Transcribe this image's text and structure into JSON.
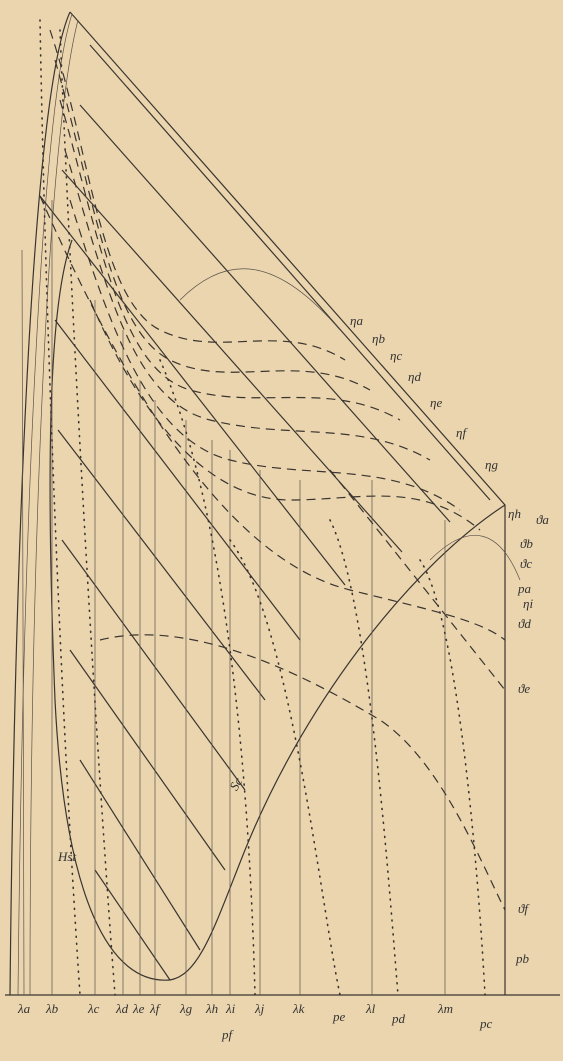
{
  "right_labels": [
    "ηa",
    "ηb",
    "ηc",
    "ηd",
    "ηe",
    "ηf",
    "ηg",
    "ηh",
    "ϑa",
    "ϑb",
    "ϑc",
    "pa",
    "ηi",
    "ϑd",
    "ϑe",
    "ϑf",
    "pb"
  ],
  "bottom_labels": [
    "λa",
    "λb",
    "λc",
    "λd",
    "λe",
    "λf",
    "λg",
    "λh",
    "λi",
    "λj",
    "λk",
    "pe",
    "λl",
    "pd",
    "λm",
    "pc",
    "pf"
  ],
  "curve_labels": [
    "Hst",
    "Sc"
  ]
}
